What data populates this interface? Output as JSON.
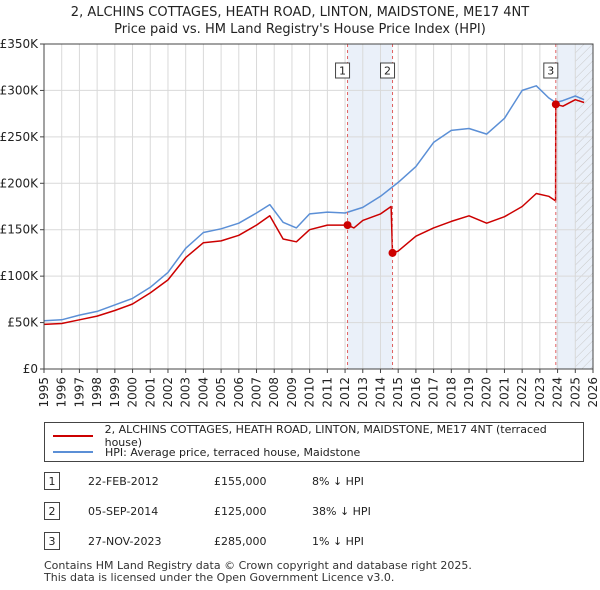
{
  "chart_data": {
    "type": "line",
    "title": "2, ALCHINS COTTAGES, HEATH ROAD, LINTON, MAIDSTONE, ME17 4NT",
    "subtitle": "Price paid vs. HM Land Registry's House Price Index (HPI)",
    "xlabel": "",
    "ylabel": "",
    "xlim": [
      1995,
      2026
    ],
    "ylim": [
      0,
      350000
    ],
    "x_ticks": [
      "1995",
      "1996",
      "1997",
      "1998",
      "1999",
      "2000",
      "2001",
      "2002",
      "2003",
      "2004",
      "2005",
      "2006",
      "2007",
      "2008",
      "2009",
      "2010",
      "2011",
      "2012",
      "2013",
      "2014",
      "2015",
      "2016",
      "2017",
      "2018",
      "2019",
      "2020",
      "2021",
      "2022",
      "2023",
      "2024",
      "2025",
      "2026"
    ],
    "y_ticks": [
      {
        "value": 0,
        "label": "£0"
      },
      {
        "value": 50000,
        "label": "£50K"
      },
      {
        "value": 100000,
        "label": "£100K"
      },
      {
        "value": 150000,
        "label": "£150K"
      },
      {
        "value": 200000,
        "label": "£200K"
      },
      {
        "value": 250000,
        "label": "£250K"
      },
      {
        "value": 300000,
        "label": "£300K"
      },
      {
        "value": 350000,
        "label": "£350K"
      }
    ],
    "grid": true,
    "series": [
      {
        "name": "2, ALCHINS COTTAGES, HEATH ROAD, LINTON, MAIDSTONE, ME17 4NT (terraced house)",
        "color": "#cc0000",
        "x": [
          1995,
          1996,
          1997,
          1998,
          1999,
          2000,
          2001,
          2002,
          2003,
          2004,
          2005,
          2006,
          2007,
          2007.75,
          2008.5,
          2009.25,
          2010,
          2011,
          2012.14,
          2012.5,
          2013,
          2014,
          2014.6,
          2014.68,
          2015,
          2016,
          2017,
          2018,
          2019,
          2020,
          2021,
          2022,
          2022.8,
          2023.5,
          2023.89,
          2023.9,
          2024.3,
          2025,
          2025.5
        ],
        "y": [
          48000,
          49000,
          53000,
          57000,
          63000,
          70000,
          82000,
          96000,
          120000,
          136000,
          138000,
          144000,
          155000,
          165000,
          140000,
          137000,
          150000,
          155000,
          155000,
          152000,
          160000,
          167000,
          175000,
          125000,
          127000,
          143000,
          152000,
          159000,
          165000,
          157000,
          164000,
          175000,
          189000,
          186000,
          181000,
          285000,
          283000,
          290000,
          287000
        ]
      },
      {
        "name": "HPI: Average price, terraced house, Maidstone",
        "color": "#5b8fd6",
        "x": [
          1995,
          1996,
          1997,
          1998,
          1999,
          2000,
          2001,
          2002,
          2003,
          2004,
          2005,
          2006,
          2007,
          2007.75,
          2008.5,
          2009.25,
          2010,
          2011,
          2012,
          2013,
          2014,
          2015,
          2016,
          2017,
          2018,
          2019,
          2020,
          2021,
          2022,
          2022.8,
          2023.5,
          2023.9,
          2024.3,
          2025,
          2025.5
        ],
        "y": [
          52000,
          53000,
          58000,
          62000,
          69000,
          76000,
          88000,
          104000,
          130000,
          147000,
          151000,
          157000,
          168000,
          177000,
          158000,
          152000,
          167000,
          169000,
          168000,
          174000,
          186000,
          201000,
          218000,
          244000,
          257000,
          259000,
          253000,
          270000,
          300000,
          305000,
          292000,
          287000,
          289000,
          294000,
          290000
        ]
      }
    ],
    "sales": [
      {
        "label": "1",
        "year": 2012.14,
        "price": 155000
      },
      {
        "label": "2",
        "year": 2014.68,
        "price": 125000
      },
      {
        "label": "3",
        "year": 2023.9,
        "price": 285000
      }
    ],
    "shaded_ranges": [
      [
        2012.14,
        2014.68
      ],
      [
        2023.9,
        2026
      ]
    ],
    "hatched_from": 2025.0
  },
  "legend": {
    "property_label": "2, ALCHINS COTTAGES, HEATH ROAD, LINTON, MAIDSTONE, ME17 4NT (terraced house)",
    "hpi_label": "HPI: Average price, terraced house, Maidstone"
  },
  "sales_table": [
    {
      "num": "1",
      "date": "22-FEB-2012",
      "price": "£155,000",
      "hpi": "8% ↓ HPI"
    },
    {
      "num": "2",
      "date": "05-SEP-2014",
      "price": "£125,000",
      "hpi": "38% ↓ HPI"
    },
    {
      "num": "3",
      "date": "27-NOV-2023",
      "price": "£285,000",
      "hpi": "1% ↓ HPI"
    }
  ],
  "footer": {
    "line1": "Contains HM Land Registry data © Crown copyright and database right 2025.",
    "line2": "This data is licensed under the Open Government Licence v3.0."
  }
}
